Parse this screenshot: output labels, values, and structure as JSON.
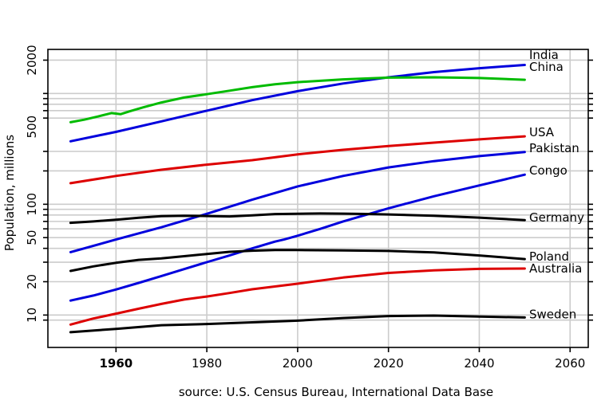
{
  "chart_data": {
    "type": "line",
    "title": "",
    "xlabel": "",
    "ylabel": "Population, millions",
    "yscale": "log",
    "xlim": [
      1945,
      2064
    ],
    "ylim": [
      5.1,
      2500
    ],
    "source_note": "source: U.S. Census Bureau, International Data Base",
    "x_ticks": [
      {
        "value": 1960,
        "label": "1960",
        "bold": true
      },
      {
        "value": 1980,
        "label": "1980",
        "bold": false
      },
      {
        "value": 2000,
        "label": "2000",
        "bold": false
      },
      {
        "value": 2020,
        "label": "2020",
        "bold": false
      },
      {
        "value": 2040,
        "label": "2040",
        "bold": false
      },
      {
        "value": 2060,
        "label": "2060",
        "bold": false
      }
    ],
    "y_ticks": [
      {
        "value": 10,
        "label": "10"
      },
      {
        "value": 20,
        "label": "20"
      },
      {
        "value": 50,
        "label": "50"
      },
      {
        "value": 100,
        "label": "100"
      },
      {
        "value": 500,
        "label": "500"
      },
      {
        "value": 2000,
        "label": "2000"
      }
    ],
    "y_gridlines": [
      9,
      10,
      20,
      30,
      40,
      50,
      60,
      70,
      80,
      90,
      100,
      200,
      300,
      600,
      700,
      800,
      900,
      1000,
      2000
    ],
    "series": [
      {
        "name": "India",
        "color": "#0000dd",
        "x": [
          1950,
          1960,
          1970,
          1980,
          1990,
          2000,
          2010,
          2020,
          2030,
          2040,
          2050
        ],
        "values": [
          370,
          450,
          560,
          700,
          870,
          1050,
          1230,
          1400,
          1560,
          1690,
          1810
        ]
      },
      {
        "name": "China",
        "color": "#00bb00",
        "x": [
          1950,
          1953,
          1956,
          1959,
          1961,
          1963,
          1966,
          1970,
          1975,
          1980,
          1985,
          1990,
          1995,
          2000,
          2010,
          2020,
          2030,
          2040,
          2050
        ],
        "values": [
          550,
          580,
          620,
          665,
          650,
          690,
          750,
          830,
          920,
          985,
          1060,
          1140,
          1210,
          1265,
          1340,
          1390,
          1400,
          1380,
          1330
        ]
      },
      {
        "name": "USA",
        "color": "#dd0000",
        "x": [
          1950,
          1960,
          1970,
          1980,
          1990,
          2000,
          2010,
          2020,
          2030,
          2040,
          2050
        ],
        "values": [
          155,
          180,
          205,
          228,
          250,
          282,
          310,
          335,
          360,
          385,
          410
        ]
      },
      {
        "name": "Pakistan",
        "color": "#0000dd",
        "x": [
          1950,
          1960,
          1970,
          1980,
          1990,
          2000,
          2010,
          2020,
          2030,
          2040,
          2050
        ],
        "values": [
          37,
          48,
          62,
          82,
          110,
          145,
          180,
          215,
          245,
          272,
          296
        ]
      },
      {
        "name": "Congo",
        "color": "#0000dd",
        "x": [
          1950,
          1955,
          1960,
          1965,
          1970,
          1975,
          1980,
          1985,
          1990,
          1995,
          1997,
          2000,
          2005,
          2010,
          2020,
          2030,
          2040,
          2050
        ],
        "values": [
          13.5,
          15,
          17,
          19.5,
          22.5,
          26,
          30,
          34.5,
          40,
          46,
          48,
          52,
          60,
          70,
          92,
          118,
          148,
          185
        ]
      },
      {
        "name": "Germany",
        "color": "#000000",
        "x": [
          1950,
          1955,
          1960,
          1965,
          1970,
          1975,
          1980,
          1985,
          1990,
          1995,
          2000,
          2005,
          2010,
          2015,
          2020,
          2030,
          2040,
          2050
        ],
        "values": [
          68,
          70,
          72.5,
          75.5,
          78,
          78.7,
          78.3,
          77.7,
          79.5,
          81.6,
          82.2,
          82.5,
          82.3,
          81.8,
          81,
          78.7,
          75.7,
          72
        ]
      },
      {
        "name": "Poland",
        "color": "#000000",
        "x": [
          1950,
          1955,
          1960,
          1965,
          1970,
          1975,
          1980,
          1985,
          1990,
          1995,
          2000,
          2010,
          2020,
          2030,
          2040,
          2050
        ],
        "values": [
          25,
          27.5,
          29.6,
          31.5,
          32.5,
          34,
          35.6,
          37.2,
          38.1,
          38.6,
          38.6,
          38.3,
          37.9,
          36.8,
          34.5,
          32
        ]
      },
      {
        "name": "Australia",
        "color": "#dd0000",
        "x": [
          1950,
          1955,
          1960,
          1965,
          1970,
          1975,
          1980,
          1985,
          1990,
          2000,
          2010,
          2020,
          2030,
          2040,
          2050
        ],
        "values": [
          8.2,
          9.3,
          10.3,
          11.4,
          12.6,
          13.8,
          14.7,
          15.8,
          17.1,
          19.2,
          21.8,
          24,
          25.3,
          26.1,
          26.3
        ]
      },
      {
        "name": "Sweden",
        "color": "#000000",
        "x": [
          1950,
          1960,
          1970,
          1980,
          1990,
          2000,
          2010,
          2020,
          2030,
          2040,
          2050
        ],
        "values": [
          7,
          7.5,
          8.1,
          8.3,
          8.6,
          8.9,
          9.4,
          9.8,
          9.9,
          9.7,
          9.5
        ]
      }
    ],
    "series_labels": [
      "India",
      "China",
      "USA",
      "Pakistan",
      "Congo",
      "Germany",
      "Poland",
      "Australia",
      "Sweden"
    ]
  }
}
